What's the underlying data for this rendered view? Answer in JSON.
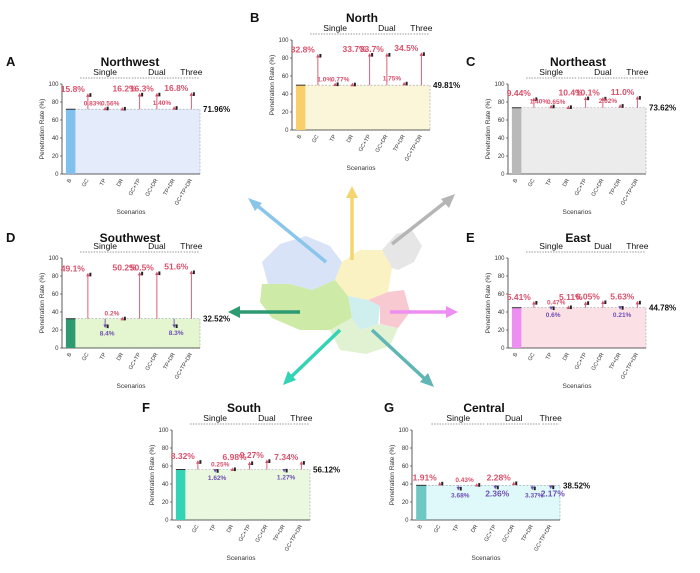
{
  "chart_data": [
    {
      "type": "bar",
      "letter": "A",
      "title": "Northwest",
      "ylabel": "Penetration Rate (%)",
      "xlabel": "Scenarios",
      "ylim": [
        0,
        100
      ],
      "yticks": [
        0,
        20,
        40,
        60,
        80,
        100
      ],
      "base_category": "B",
      "base_value": 71.96,
      "base_label": "71.96%",
      "groups": [
        "Single",
        "Dual",
        "Three"
      ],
      "bar_color": "#7fc0ee",
      "area_color": "#e4ebfb",
      "categories": [
        "GC",
        "TP",
        "DR",
        "GC+TP",
        "GC+DR",
        "TP+DR",
        "GC+TP+DR"
      ],
      "values": [
        87.76,
        72.79,
        72.52,
        88.16,
        88.26,
        73.36,
        88.76
      ],
      "labels": [
        "15.8%",
        "0.83%",
        "0.56%",
        "16.2%",
        "16.3%",
        "1.40%",
        "16.8%"
      ],
      "directions": [
        "up",
        "up",
        "up",
        "up",
        "up",
        "up",
        "up"
      ]
    },
    {
      "type": "bar",
      "letter": "B",
      "title": "North",
      "ylabel": "Penetration Rate (%)",
      "xlabel": "Scenarios",
      "ylim": [
        0,
        100
      ],
      "yticks": [
        0,
        20,
        40,
        60,
        80,
        100
      ],
      "base_category": "B",
      "base_value": 49.81,
      "base_label": "49.81%",
      "groups": [
        "Single",
        "Dual",
        "Three"
      ],
      "bar_color": "#f8cf6b",
      "area_color": "#fbf6d9",
      "categories": [
        "GC",
        "TP",
        "DR",
        "GC+TP",
        "GC+DR",
        "TP+DR",
        "GC+TP+DR"
      ],
      "values": [
        82.51,
        50.81,
        50.58,
        83.51,
        83.51,
        51.56,
        84.31
      ],
      "labels": [
        "32.8%",
        "1.0%",
        "0.77%",
        "33.7%",
        "33.7%",
        "1.75%",
        "34.5%"
      ],
      "directions": [
        "up",
        "up",
        "up",
        "up",
        "up",
        "up",
        "up"
      ]
    },
    {
      "type": "bar",
      "letter": "C",
      "title": "Northeast",
      "ylabel": "Penetration Rate (%)",
      "xlabel": "Scenarios",
      "ylim": [
        0,
        100
      ],
      "yticks": [
        0,
        20,
        40,
        60,
        80,
        100
      ],
      "base_category": "B",
      "base_value": 73.62,
      "base_label": "73.62%",
      "groups": [
        "Single",
        "Dual",
        "Three"
      ],
      "bar_color": "#b9b9b9",
      "area_color": "#ececec",
      "categories": [
        "GC",
        "TP",
        "DR",
        "GC+TP",
        "GC+DR",
        "TP+DR",
        "GC+TP+DR"
      ],
      "values": [
        83.06,
        75.02,
        74.27,
        84.02,
        83.72,
        75.64,
        84.62
      ],
      "labels": [
        "9.44%",
        "1.40%",
        "0.65%",
        "10.4%",
        "10.1%",
        "2.02%",
        "11.0%"
      ],
      "directions": [
        "up",
        "up",
        "up",
        "up",
        "up",
        "up",
        "up"
      ]
    },
    {
      "type": "bar",
      "letter": "D",
      "title": "Southwest",
      "ylabel": "Penetration Rate (%)",
      "xlabel": "Scenarios",
      "ylim": [
        0,
        100
      ],
      "yticks": [
        0,
        20,
        40,
        60,
        80,
        100
      ],
      "base_category": "B",
      "base_value": 32.52,
      "base_label": "32.52%",
      "groups": [
        "Single",
        "Dual",
        "Three"
      ],
      "bar_color": "#2e9a72",
      "area_color": "#e3f6cf",
      "categories": [
        "GC",
        "TP",
        "DR",
        "GC+TP",
        "GC+DR",
        "TP+DR",
        "GC+TP+DR"
      ],
      "values": [
        81.62,
        24.12,
        32.72,
        82.72,
        83.02,
        24.22,
        84.12
      ],
      "labels": [
        "49.1%",
        "8.4%",
        "0.2%",
        "50.2%",
        "50.5%",
        "8.3%",
        "51.6%"
      ],
      "directions": [
        "up",
        "down",
        "up",
        "up",
        "up",
        "down",
        "up"
      ]
    },
    {
      "type": "bar",
      "letter": "E",
      "title": "East",
      "ylabel": "Penetration Rate (%)",
      "xlabel": "Scenarios",
      "ylim": [
        0,
        100
      ],
      "yticks": [
        0,
        20,
        40,
        60,
        80,
        100
      ],
      "base_category": "B",
      "base_value": 44.78,
      "base_label": "44.78%",
      "groups": [
        "Single",
        "Dual",
        "Three"
      ],
      "bar_color": "#ec8ff0",
      "area_color": "#fbe1e6",
      "categories": [
        "GC",
        "TP",
        "DR",
        "GC+TP",
        "GC+DR",
        "TP+DR",
        "GC+TP+DR"
      ],
      "values": [
        50.19,
        44.18,
        45.25,
        49.89,
        50.83,
        44.57,
        50.41
      ],
      "labels": [
        "5.41%",
        "0.6%",
        "0.47%",
        "5.11%",
        "6.05%",
        "0.21%",
        "5.63%"
      ],
      "directions": [
        "up",
        "down",
        "up",
        "up",
        "up",
        "down",
        "up"
      ]
    },
    {
      "type": "bar",
      "letter": "F",
      "title": "South",
      "ylabel": "Penetration Rate (%)",
      "xlabel": "Scenarios",
      "ylim": [
        0,
        100
      ],
      "yticks": [
        0,
        20,
        40,
        60,
        80,
        100
      ],
      "base_category": "B",
      "base_value": 56.12,
      "base_label": "56.12%",
      "groups": [
        "Single",
        "Dual",
        "Three"
      ],
      "bar_color": "#33d3b5",
      "area_color": "#eaf8df",
      "categories": [
        "GC",
        "TP",
        "DR",
        "GC+TP",
        "GC+DR",
        "TP+DR",
        "GC+TP+DR"
      ],
      "values": [
        64.44,
        54.5,
        56.37,
        63.1,
        65.39,
        54.85,
        63.46
      ],
      "labels": [
        "8.32%",
        "1.62%",
        "0.25%",
        "6.98%",
        "9.27%",
        "1.27%",
        "7.34%"
      ],
      "directions": [
        "up",
        "down",
        "up",
        "up",
        "up",
        "down",
        "up"
      ]
    },
    {
      "type": "bar",
      "letter": "G",
      "title": "Central",
      "ylabel": "Penetration Rate (%)",
      "xlabel": "Scenarios",
      "ylim": [
        0,
        100
      ],
      "yticks": [
        0,
        20,
        40,
        60,
        80,
        100
      ],
      "base_category": "B",
      "base_value": 38.52,
      "base_label": "38.52%",
      "groups": [
        "Single",
        "Dual",
        "Three"
      ],
      "bar_color": "#6fc7c3",
      "area_color": "#dff8fa",
      "categories": [
        "GC",
        "TP",
        "DR",
        "GC+TP",
        "GC+DR",
        "TP+DR",
        "GC+TP+DR"
      ],
      "values": [
        40.43,
        34.84,
        38.95,
        36.16,
        40.8,
        35.15,
        36.35
      ],
      "labels": [
        "1.91%",
        "3.68%",
        "0.43%",
        "2.36%",
        "2.28%",
        "3.37%",
        "2.17%"
      ],
      "directions": [
        "up",
        "down",
        "up",
        "down",
        "up",
        "down",
        "down"
      ]
    }
  ],
  "colors": {
    "increase": "#d9506b",
    "decrease": "#6f4fb3",
    "axis": "#333333"
  }
}
